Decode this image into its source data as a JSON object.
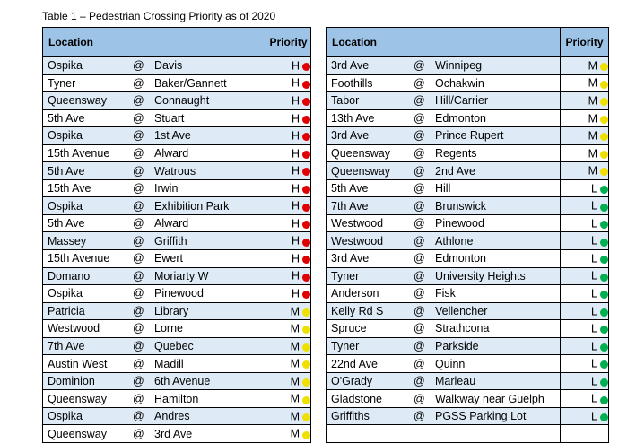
{
  "caption": "Table 1 – Pedestrian Crossing Priority as of 2020",
  "headers": {
    "location": "Location",
    "priority": "Priority"
  },
  "priority_colors": {
    "H": "#e00000",
    "M": "#f0e000",
    "L": "#00b050"
  },
  "left_rows": [
    {
      "street": "Ospika",
      "at": "@",
      "cross": "Davis",
      "priority": "H"
    },
    {
      "street": "Tyner",
      "at": "@",
      "cross": "Baker/Gannett",
      "priority": "H"
    },
    {
      "street": "Queensway",
      "at": "@",
      "cross": "Connaught",
      "priority": "H"
    },
    {
      "street": "5th Ave",
      "at": "@",
      "cross": "Stuart",
      "priority": "H"
    },
    {
      "street": "Ospika",
      "at": "@",
      "cross": "1st Ave",
      "priority": "H"
    },
    {
      "street": "15th Avenue",
      "at": "@",
      "cross": "Alward",
      "priority": "H"
    },
    {
      "street": "5th Ave",
      "at": "@",
      "cross": "Watrous",
      "priority": "H"
    },
    {
      "street": "15th Ave",
      "at": "@",
      "cross": "Irwin",
      "priority": "H"
    },
    {
      "street": "Ospika",
      "at": "@",
      "cross": "Exhibition Park",
      "priority": "H"
    },
    {
      "street": "5th Ave",
      "at": "@",
      "cross": "Alward",
      "priority": "H"
    },
    {
      "street": "Massey",
      "at": "@",
      "cross": "Griffith",
      "priority": "H"
    },
    {
      "street": "15th Avenue",
      "at": "@",
      "cross": "Ewert",
      "priority": "H"
    },
    {
      "street": "Domano",
      "at": "@",
      "cross": "Moriarty W",
      "priority": "H"
    },
    {
      "street": "Ospika",
      "at": "@",
      "cross": "Pinewood",
      "priority": "H"
    },
    {
      "street": "Patricia",
      "at": "@",
      "cross": "Library",
      "priority": "M"
    },
    {
      "street": "Westwood",
      "at": "@",
      "cross": "Lorne",
      "priority": "M"
    },
    {
      "street": "7th Ave",
      "at": "@",
      "cross": "Quebec",
      "priority": "M"
    },
    {
      "street": "Austin West",
      "at": "@",
      "cross": "Madill",
      "priority": "M"
    },
    {
      "street": "Dominion",
      "at": "@",
      "cross": "6th Avenue",
      "priority": "M"
    },
    {
      "street": "Queensway",
      "at": "@",
      "cross": "Hamilton",
      "priority": "M"
    },
    {
      "street": "Ospika",
      "at": "@",
      "cross": "Andres",
      "priority": "M"
    },
    {
      "street": "Queensway",
      "at": "@",
      "cross": "3rd Ave",
      "priority": "M"
    }
  ],
  "right_rows": [
    {
      "street": "3rd Ave",
      "at": "@",
      "cross": "Winnipeg",
      "priority": "M"
    },
    {
      "street": "Foothills",
      "at": "@",
      "cross": "Ochakwin",
      "priority": "M"
    },
    {
      "street": "Tabor",
      "at": "@",
      "cross": "Hill/Carrier",
      "priority": "M"
    },
    {
      "street": "13th Ave",
      "at": "@",
      "cross": "Edmonton",
      "priority": "M"
    },
    {
      "street": "3rd Ave",
      "at": "@",
      "cross": "Prince Rupert",
      "priority": "M"
    },
    {
      "street": "Queensway",
      "at": "@",
      "cross": "Regents",
      "priority": "M"
    },
    {
      "street": "Queensway",
      "at": "@",
      "cross": "2nd Ave",
      "priority": "M"
    },
    {
      "street": "5th Ave",
      "at": "@",
      "cross": "Hill",
      "priority": "L"
    },
    {
      "street": "7th Ave",
      "at": "@",
      "cross": "Brunswick",
      "priority": "L"
    },
    {
      "street": "Westwood",
      "at": "@",
      "cross": "Pinewood",
      "priority": "L"
    },
    {
      "street": "Westwood",
      "at": "@",
      "cross": "Athlone",
      "priority": "L"
    },
    {
      "street": "3rd Ave",
      "at": "@",
      "cross": "Edmonton",
      "priority": "L"
    },
    {
      "street": "Tyner",
      "at": "@",
      "cross": "University Heights",
      "priority": "L"
    },
    {
      "street": "Anderson",
      "at": "@",
      "cross": "Fisk",
      "priority": "L"
    },
    {
      "street": "Kelly Rd S",
      "at": "@",
      "cross": "Vellencher",
      "priority": "L"
    },
    {
      "street": "Spruce",
      "at": "@",
      "cross": "Strathcona",
      "priority": "L"
    },
    {
      "street": "Tyner",
      "at": "@",
      "cross": "Parkside",
      "priority": "L"
    },
    {
      "street": "22nd Ave",
      "at": "@",
      "cross": "Quinn",
      "priority": "L"
    },
    {
      "street": "O'Grady",
      "at": "@",
      "cross": "Marleau",
      "priority": "L"
    },
    {
      "street": "Gladstone",
      "at": "@",
      "cross": "Walkway near Guelph",
      "priority": "L"
    },
    {
      "street": "Griffiths",
      "at": "@",
      "cross": "PGSS Parking Lot",
      "priority": "L"
    },
    null
  ]
}
